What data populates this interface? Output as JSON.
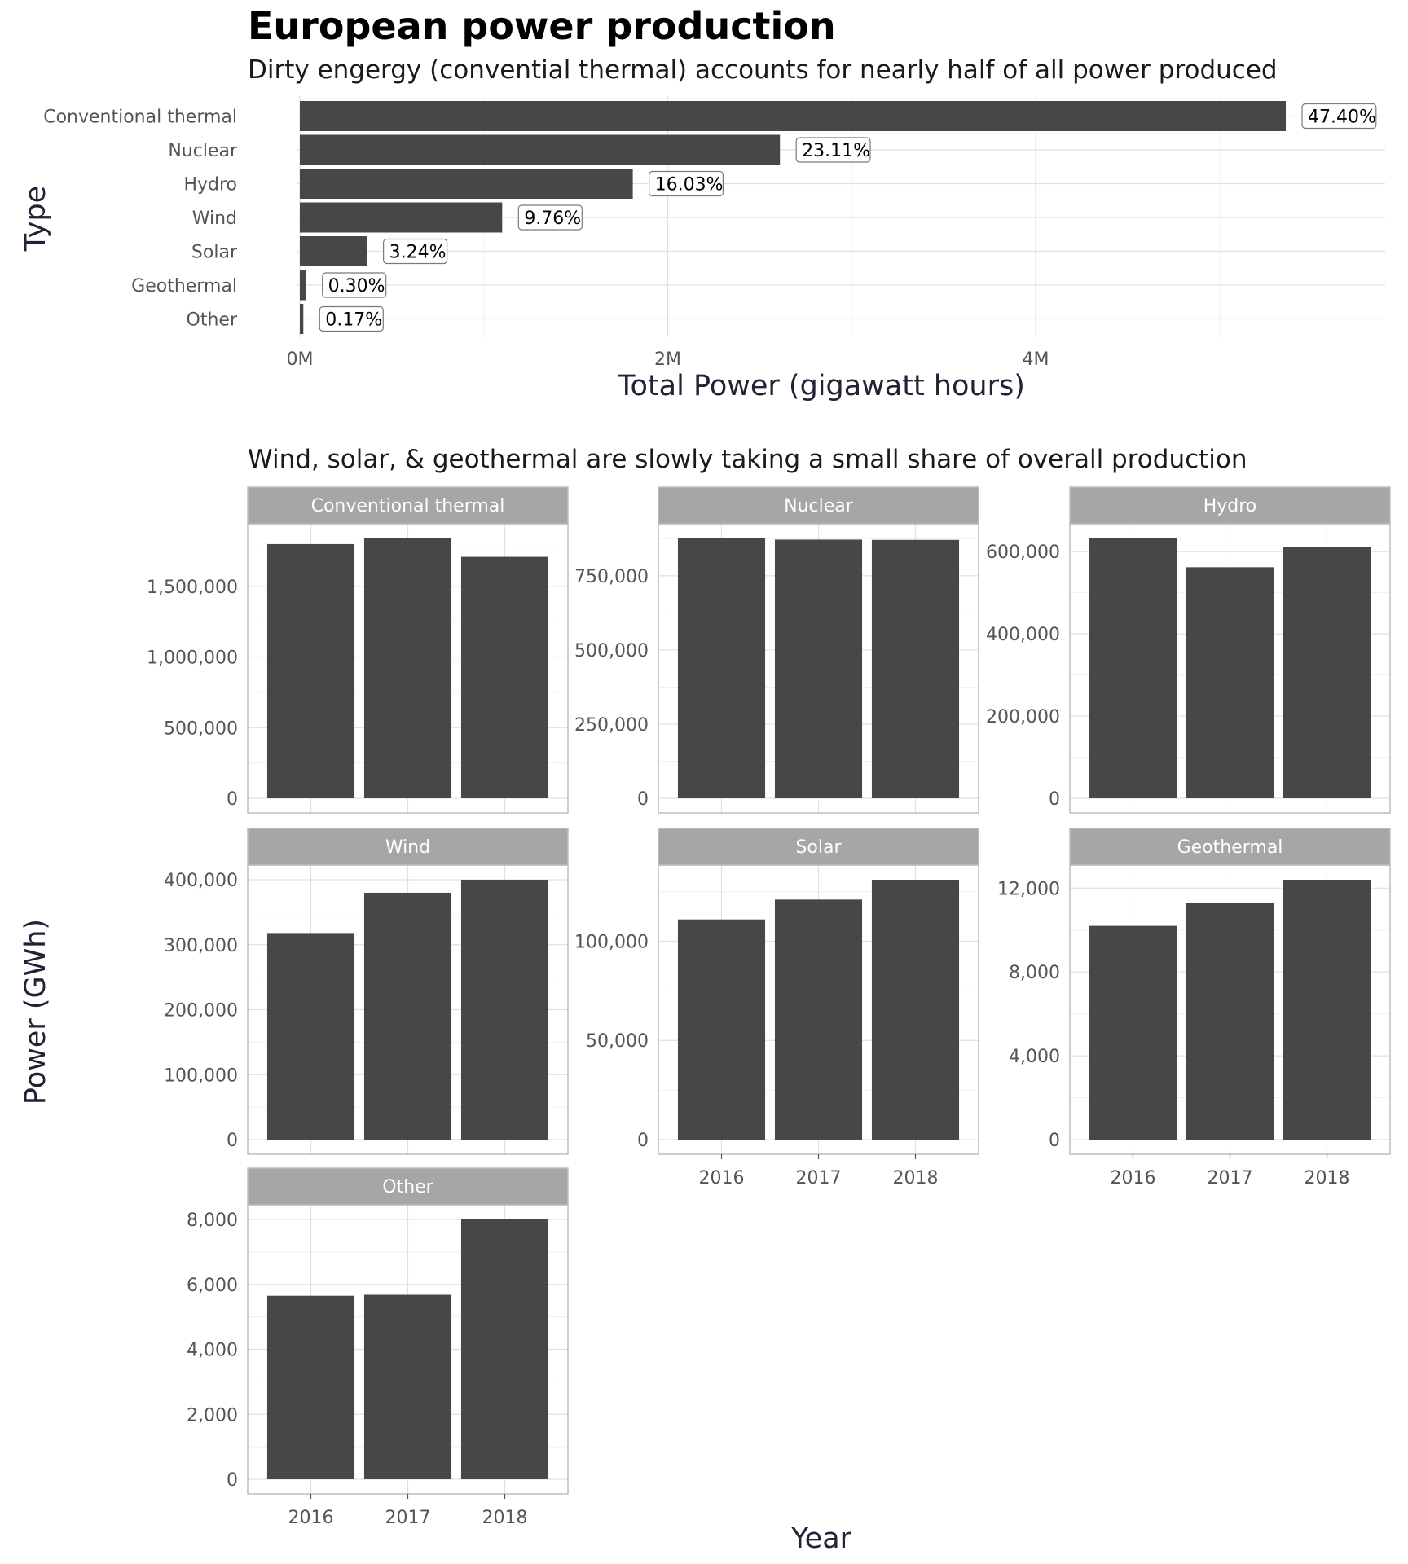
{
  "title": "European power production",
  "top_subtitle": "Dirty engergy (convential thermal) accounts for nearly half of all power produced",
  "bottom_subtitle": "Wind, solar, & geothermal are slowly taking a small share of overall production",
  "colors": {
    "bar": "#474747",
    "strip": "#a6a6a6",
    "grid_major": "#e0e0e0",
    "grid_minor": "#f0f0f0",
    "border": "#bdbdbd"
  },
  "chart_data": [
    {
      "type": "bar",
      "orientation": "horizontal",
      "categories": [
        "Conventional thermal",
        "Nuclear",
        "Hydro",
        "Wind",
        "Solar",
        "Geothermal",
        "Other"
      ],
      "values": [
        5360000,
        2610000,
        1810000,
        1100000,
        366000,
        34000,
        19000
      ],
      "data_labels": [
        "47.40%",
        "23.11%",
        "16.03%",
        "9.76%",
        "3.24%",
        "0.30%",
        "0.17%"
      ],
      "xlabel": "Total Power (gigawatt hours)",
      "ylabel": "Type",
      "xticks": [
        0,
        2000000,
        4000000
      ],
      "xtick_labels": [
        "0M",
        "2M",
        "4M"
      ],
      "xlim": [
        0,
        5360000
      ],
      "grid": true
    },
    {
      "type": "bar",
      "faceted": true,
      "xlabel": "Year",
      "ylabel": "Power (GWh)",
      "categories": [
        "2016",
        "2017",
        "2018"
      ],
      "grid": true,
      "panels": [
        {
          "name": "Conventional thermal",
          "values": [
            1800000,
            1840000,
            1710000
          ],
          "yticks": [
            0,
            500000,
            1000000,
            1500000
          ],
          "ytick_labels": [
            "0",
            "500,000",
            "1,000,000",
            "1,500,000"
          ],
          "ylim": [
            0,
            1840000
          ],
          "show_x": false
        },
        {
          "name": "Nuclear",
          "values": [
            876000,
            872000,
            871000
          ],
          "yticks": [
            0,
            250000,
            500000,
            750000
          ],
          "ytick_labels": [
            "0",
            "250,000",
            "500,000",
            "750,000"
          ],
          "ylim": [
            0,
            876000
          ],
          "show_x": false
        },
        {
          "name": "Hydro",
          "values": [
            632000,
            562000,
            612000
          ],
          "yticks": [
            0,
            200000,
            400000,
            600000
          ],
          "ytick_labels": [
            "0",
            "200,000",
            "400,000",
            "600,000"
          ],
          "ylim": [
            0,
            632000
          ],
          "show_x": false
        },
        {
          "name": "Wind",
          "values": [
            318000,
            380000,
            400000
          ],
          "yticks": [
            0,
            100000,
            200000,
            300000,
            400000
          ],
          "ytick_labels": [
            "0",
            "100,000",
            "200,000",
            "300,000",
            "400,000"
          ],
          "ylim": [
            0,
            400000
          ],
          "show_x": false
        },
        {
          "name": "Solar",
          "values": [
            111000,
            121000,
            131000
          ],
          "yticks": [
            0,
            50000,
            100000
          ],
          "ytick_labels": [
            "0",
            "50,000",
            "100,000"
          ],
          "ylim": [
            0,
            131000
          ],
          "show_x": true
        },
        {
          "name": "Geothermal",
          "values": [
            10200,
            11300,
            12400
          ],
          "yticks": [
            0,
            4000,
            8000,
            12000
          ],
          "ytick_labels": [
            "0",
            "4,000",
            "8,000",
            "12,000"
          ],
          "ylim": [
            0,
            12400
          ],
          "show_x": true
        },
        {
          "name": "Other",
          "values": [
            5650,
            5680,
            8000
          ],
          "yticks": [
            0,
            2000,
            4000,
            6000,
            8000
          ],
          "ytick_labels": [
            "0",
            "2,000",
            "4,000",
            "6,000",
            "8,000"
          ],
          "ylim": [
            0,
            8000
          ],
          "show_x": true
        }
      ]
    }
  ]
}
